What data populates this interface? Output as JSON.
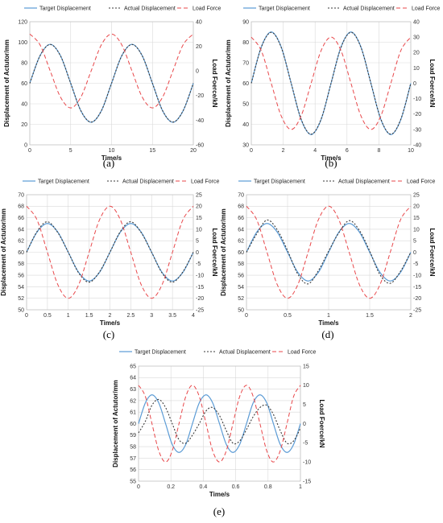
{
  "legend": {
    "target": "Target Displacement",
    "actual": "Actual Displacement",
    "load": "Load Force"
  },
  "colors": {
    "target": "#5b9bd5",
    "actual": "#3a3a3a",
    "load": "#e8474a",
    "grid": "#d9d9d9"
  },
  "chart_data": [
    {
      "type": "line",
      "caption": "(a)",
      "xlabel": "Time/s",
      "ylabel": "Displacement of Actutor/mm",
      "y2label": "Load Foerce/kN",
      "xlim": [
        0,
        20
      ],
      "xticks": [
        0,
        5,
        10,
        15,
        20
      ],
      "ylim": [
        0,
        120
      ],
      "yticks": [
        0,
        20,
        40,
        60,
        80,
        100,
        120
      ],
      "y2lim": [
        -60,
        40
      ],
      "y2ticks": [
        -60,
        -40,
        -20,
        0,
        20,
        40
      ],
      "grid": true,
      "legend_position": "top",
      "series": [
        {
          "key": "target",
          "axis": "left",
          "style": "solid",
          "x": [
            0,
            1.25,
            2.5,
            3.75,
            5,
            6.25,
            7.5,
            8.75,
            10,
            11.25,
            12.5,
            13.75,
            15,
            16.25,
            17.5,
            18.75,
            20
          ],
          "y": [
            60,
            86.9,
            98,
            86.9,
            60,
            33.1,
            22,
            33.1,
            60,
            86.9,
            98,
            86.9,
            60,
            33.1,
            22,
            33.1,
            60
          ]
        },
        {
          "key": "actual",
          "axis": "left",
          "style": "dotted",
          "x": [
            0,
            1.25,
            2.5,
            3.75,
            5,
            6.25,
            7.5,
            8.75,
            10,
            11.25,
            12.5,
            13.75,
            15,
            16.25,
            17.5,
            18.75,
            20
          ],
          "y": [
            60,
            86.8,
            97.8,
            86.8,
            60,
            33.2,
            22.2,
            33.2,
            60,
            86.8,
            97.8,
            86.8,
            60,
            33.2,
            22.2,
            33.2,
            60
          ]
        },
        {
          "key": "load",
          "axis": "right",
          "style": "dashed",
          "x": [
            0,
            1.25,
            2.5,
            3.75,
            5,
            6.25,
            7.5,
            8.75,
            10,
            11.25,
            12.5,
            13.75,
            15,
            16.25,
            17.5,
            18.75,
            20
          ],
          "y": [
            30,
            21.2,
            0,
            -21.2,
            -30,
            -21.2,
            0,
            21.2,
            30,
            21.2,
            0,
            -21.2,
            -30,
            -21.2,
            0,
            21.2,
            30
          ]
        }
      ]
    },
    {
      "type": "line",
      "caption": "(b)",
      "xlabel": "Time/s",
      "ylabel": "Displacement of Actutor/mm",
      "y2label": "Load Foerce/kN",
      "xlim": [
        0,
        10
      ],
      "xticks": [
        0,
        2,
        4,
        6,
        8,
        10
      ],
      "ylim": [
        30,
        90
      ],
      "yticks": [
        30,
        40,
        50,
        60,
        70,
        80,
        90
      ],
      "y2lim": [
        -40,
        40
      ],
      "y2ticks": [
        -40,
        -30,
        -20,
        -10,
        0,
        10,
        20,
        30,
        40
      ],
      "grid": true,
      "legend_position": "top",
      "series": [
        {
          "key": "target",
          "axis": "left",
          "style": "solid",
          "x": [
            0,
            0.625,
            1.25,
            1.875,
            2.5,
            3.125,
            3.75,
            4.375,
            5,
            5.625,
            6.25,
            6.875,
            7.5,
            8.125,
            8.75,
            9.375,
            10
          ],
          "y": [
            60,
            77.7,
            85,
            77.7,
            60,
            42.3,
            35,
            42.3,
            60,
            77.7,
            85,
            77.7,
            60,
            42.3,
            35,
            42.3,
            60
          ]
        },
        {
          "key": "actual",
          "axis": "left",
          "style": "dotted",
          "x": [
            0,
            0.625,
            1.25,
            1.875,
            2.5,
            3.125,
            3.75,
            4.375,
            5,
            5.625,
            6.25,
            6.875,
            7.5,
            8.125,
            8.75,
            9.375,
            10
          ],
          "y": [
            60,
            77.5,
            84.8,
            77.5,
            60,
            42.5,
            35.2,
            42.5,
            60,
            77.5,
            84.8,
            77.5,
            60,
            42.5,
            35.2,
            42.5,
            60
          ]
        },
        {
          "key": "load",
          "axis": "right",
          "style": "dashed",
          "x": [
            0,
            0.625,
            1.25,
            1.875,
            2.5,
            3.125,
            3.75,
            4.375,
            5,
            5.625,
            6.25,
            6.875,
            7.5,
            8.125,
            8.75,
            9.375,
            10
          ],
          "y": [
            30,
            21.2,
            0,
            -21.2,
            -30,
            -21.2,
            0,
            21.2,
            30,
            21.2,
            0,
            -21.2,
            -30,
            -21.2,
            0,
            21.2,
            30
          ]
        }
      ]
    },
    {
      "type": "line",
      "caption": "(c)",
      "xlabel": "Time/s",
      "ylabel": "Displacement of Actutor/mm",
      "y2label": "Load Foerce/kN",
      "xlim": [
        0,
        4
      ],
      "xticks": [
        0,
        0.5,
        1,
        1.5,
        2,
        2.5,
        3,
        3.5,
        4
      ],
      "ylim": [
        50,
        70
      ],
      "yticks": [
        50,
        52,
        54,
        56,
        58,
        60,
        62,
        64,
        66,
        68,
        70
      ],
      "y2lim": [
        -25,
        25
      ],
      "y2ticks": [
        -25,
        -20,
        -15,
        -10,
        -5,
        0,
        5,
        10,
        15,
        20,
        25
      ],
      "grid": true,
      "legend_position": "top",
      "series": [
        {
          "key": "target",
          "axis": "left",
          "style": "solid",
          "x": [
            0,
            0.25,
            0.5,
            0.75,
            1,
            1.25,
            1.5,
            1.75,
            2,
            2.25,
            2.5,
            2.75,
            3,
            3.25,
            3.5,
            3.75,
            4
          ],
          "y": [
            60,
            63.5,
            65,
            63.5,
            60,
            56.5,
            55,
            56.5,
            60,
            63.5,
            65,
            63.5,
            60,
            56.5,
            55,
            56.5,
            60
          ]
        },
        {
          "key": "actual",
          "axis": "left",
          "style": "dotted",
          "x": [
            0,
            0.25,
            0.5,
            0.75,
            1,
            1.25,
            1.5,
            1.75,
            2,
            2.25,
            2.5,
            2.75,
            3,
            3.25,
            3.5,
            3.75,
            4
          ],
          "y": [
            60,
            63.6,
            65.3,
            63.4,
            60,
            56.4,
            54.8,
            56.6,
            60,
            63.6,
            65.3,
            63.4,
            60,
            56.4,
            54.8,
            56.6,
            60
          ]
        },
        {
          "key": "load",
          "axis": "right",
          "style": "dashed",
          "x": [
            0,
            0.25,
            0.5,
            0.75,
            1,
            1.25,
            1.5,
            1.75,
            2,
            2.25,
            2.5,
            2.75,
            3,
            3.25,
            3.5,
            3.75,
            4
          ],
          "y": [
            20,
            14.1,
            0,
            -14.1,
            -20,
            -14.1,
            0,
            14.1,
            20,
            14.1,
            0,
            -14.1,
            -20,
            -14.1,
            0,
            14.1,
            20
          ]
        }
      ]
    },
    {
      "type": "line",
      "caption": "(d)",
      "xlabel": "Time/s",
      "ylabel": "Displacement of Actutor/mm",
      "y2label": "Load Foerce/kN",
      "xlim": [
        0,
        2
      ],
      "xticks": [
        0,
        0.5,
        1,
        1.5,
        2
      ],
      "ylim": [
        50,
        70
      ],
      "yticks": [
        50,
        52,
        54,
        56,
        58,
        60,
        62,
        64,
        66,
        68,
        70
      ],
      "y2lim": [
        -25,
        25
      ],
      "y2ticks": [
        -25,
        -20,
        -15,
        -10,
        -5,
        0,
        5,
        10,
        15,
        20,
        25
      ],
      "grid": true,
      "legend_position": "top",
      "series": [
        {
          "key": "target",
          "axis": "left",
          "style": "solid",
          "x": [
            0,
            0.125,
            0.25,
            0.375,
            0.5,
            0.625,
            0.75,
            0.875,
            1,
            1.125,
            1.25,
            1.375,
            1.5,
            1.625,
            1.75,
            1.875,
            2
          ],
          "y": [
            60,
            63.5,
            65,
            63.5,
            60,
            56.5,
            55,
            56.5,
            60,
            63.5,
            65,
            63.5,
            60,
            56.5,
            55,
            56.5,
            60
          ]
        },
        {
          "key": "actual",
          "axis": "left",
          "style": "dotted",
          "x": [
            0,
            0.125,
            0.25,
            0.375,
            0.5,
            0.625,
            0.75,
            0.875,
            1,
            1.125,
            1.25,
            1.375,
            1.5,
            1.625,
            1.75,
            1.875,
            2
          ],
          "y": [
            60,
            63.2,
            65.6,
            63.9,
            60.3,
            56.2,
            54.5,
            56.8,
            60.2,
            63.4,
            65.5,
            63.8,
            60.2,
            56.1,
            54.6,
            56.7,
            60
          ]
        },
        {
          "key": "load",
          "axis": "right",
          "style": "dashed",
          "x": [
            0,
            0.125,
            0.25,
            0.375,
            0.5,
            0.625,
            0.75,
            0.875,
            1,
            1.125,
            1.25,
            1.375,
            1.5,
            1.625,
            1.75,
            1.875,
            2
          ],
          "y": [
            20,
            14.1,
            0,
            -14.1,
            -20,
            -14.1,
            0,
            14.1,
            20,
            14.1,
            0,
            -14.1,
            -20,
            -14.1,
            0,
            14.1,
            20
          ]
        }
      ]
    },
    {
      "type": "line",
      "caption": "(e)",
      "xlabel": "Time/s",
      "ylabel": "Displacement of Actutor/mm",
      "y2label": "Load Foerce/kN",
      "xlim": [
        0,
        1
      ],
      "xticks": [
        0,
        0.2,
        0.4,
        0.6,
        0.8,
        1
      ],
      "ylim": [
        55,
        65
      ],
      "yticks": [
        55,
        56,
        57,
        58,
        59,
        60,
        61,
        62,
        63,
        64,
        65
      ],
      "y2lim": [
        -15,
        15
      ],
      "y2ticks": [
        -15,
        -10,
        -5,
        0,
        5,
        10,
        15
      ],
      "grid": true,
      "legend_position": "top",
      "series": [
        {
          "key": "target",
          "axis": "left",
          "style": "solid",
          "x": [
            0,
            0.042,
            0.083,
            0.125,
            0.167,
            0.208,
            0.25,
            0.292,
            0.333,
            0.375,
            0.417,
            0.458,
            0.5,
            0.542,
            0.583,
            0.625,
            0.667,
            0.708,
            0.75,
            0.792,
            0.833,
            0.875,
            0.917,
            0.958,
            1
          ],
          "y": [
            60,
            61.8,
            62.5,
            61.8,
            60,
            58.2,
            57.5,
            58.2,
            60,
            61.8,
            62.5,
            61.8,
            60,
            58.2,
            57.5,
            58.2,
            60,
            61.8,
            62.5,
            61.8,
            60,
            58.2,
            57.5,
            58.2,
            60
          ]
        },
        {
          "key": "actual",
          "axis": "left",
          "style": "dotted",
          "x": [
            0,
            0.042,
            0.083,
            0.125,
            0.167,
            0.208,
            0.25,
            0.292,
            0.333,
            0.375,
            0.417,
            0.458,
            0.5,
            0.542,
            0.583,
            0.625,
            0.667,
            0.708,
            0.75,
            0.792,
            0.833,
            0.875,
            0.917,
            0.958,
            1
          ],
          "y": [
            59.2,
            60.2,
            61.6,
            62.1,
            61.4,
            60,
            58.6,
            58.3,
            59,
            60,
            61.1,
            61.4,
            60.7,
            59.4,
            58.3,
            58.5,
            59.5,
            60.6,
            61.4,
            61.6,
            60.8,
            59.4,
            58.3,
            58.5,
            59.6
          ]
        },
        {
          "key": "load",
          "axis": "right",
          "style": "dashed",
          "x": [
            0,
            0.042,
            0.083,
            0.125,
            0.167,
            0.208,
            0.25,
            0.292,
            0.333,
            0.375,
            0.417,
            0.458,
            0.5,
            0.542,
            0.583,
            0.625,
            0.667,
            0.708,
            0.75,
            0.792,
            0.833,
            0.875,
            0.917,
            0.958,
            1
          ],
          "y": [
            10,
            7.1,
            0,
            -7.1,
            -10,
            -7.1,
            0,
            7.1,
            10,
            7.1,
            0,
            -7.1,
            -10,
            -7.1,
            0,
            7.1,
            10,
            7.1,
            0,
            -7.1,
            -10,
            -7.1,
            0,
            7.1,
            10
          ]
        }
      ]
    }
  ]
}
